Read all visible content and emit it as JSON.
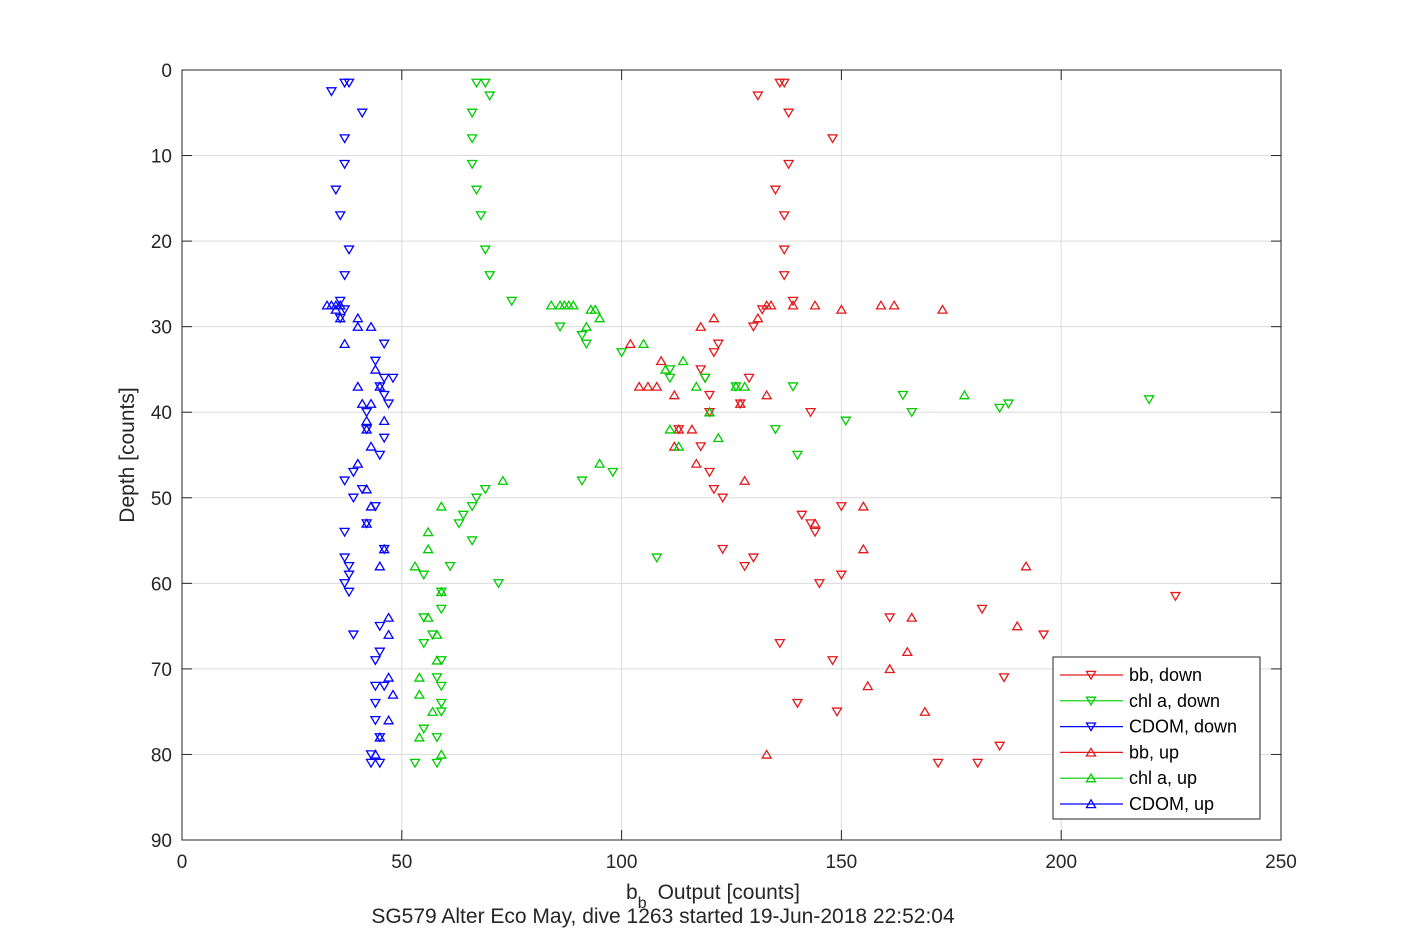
{
  "chart_data": {
    "type": "scatter",
    "xlabel": "Output [counts]",
    "xlabel_prefix": "b",
    "xlabel_subscript": "b",
    "ylabel": "Depth [counts]",
    "caption": "SG579 Alter Eco May, dive 1263 started 19-Jun-2018 22:52:04",
    "xlim": [
      0,
      250
    ],
    "ylim": [
      0,
      90
    ],
    "y_reversed": true,
    "grid": true,
    "x_ticks": [
      0,
      50,
      100,
      150,
      200,
      250
    ],
    "y_ticks": [
      0,
      10,
      20,
      30,
      40,
      50,
      60,
      70,
      80,
      90
    ],
    "legend_position": "bottom-right",
    "series": [
      {
        "name": "bb, down",
        "color": "#e31a1c",
        "marker": "triangle-down",
        "points": [
          [
            136,
            1.5
          ],
          [
            137,
            1.5
          ],
          [
            131,
            3
          ],
          [
            138,
            5
          ],
          [
            148,
            8
          ],
          [
            138,
            11
          ],
          [
            135,
            14
          ],
          [
            137,
            17
          ],
          [
            137,
            21
          ],
          [
            137,
            24
          ],
          [
            139,
            27
          ],
          [
            130,
            30
          ],
          [
            132,
            28
          ],
          [
            122,
            32
          ],
          [
            121,
            33
          ],
          [
            118,
            35
          ],
          [
            119,
            36
          ],
          [
            129,
            36
          ],
          [
            120,
            38
          ],
          [
            127,
            39
          ],
          [
            120,
            40
          ],
          [
            143,
            40
          ],
          [
            113,
            42
          ],
          [
            118,
            44
          ],
          [
            120,
            47
          ],
          [
            121,
            49
          ],
          [
            123,
            50
          ],
          [
            150,
            51
          ],
          [
            141,
            52
          ],
          [
            143,
            53
          ],
          [
            144,
            54
          ],
          [
            123,
            56
          ],
          [
            130,
            57
          ],
          [
            128,
            58
          ],
          [
            150,
            59
          ],
          [
            145,
            60
          ],
          [
            161,
            64
          ],
          [
            182,
            63
          ],
          [
            226,
            61.5
          ],
          [
            196,
            66
          ],
          [
            136,
            67
          ],
          [
            148,
            69
          ],
          [
            187,
            71
          ],
          [
            140,
            74
          ],
          [
            149,
            75
          ],
          [
            186,
            79
          ],
          [
            181,
            81
          ],
          [
            172,
            81
          ]
        ]
      },
      {
        "name": "chl a, down",
        "color": "#00cc00",
        "marker": "triangle-down",
        "points": [
          [
            67,
            1.5
          ],
          [
            69,
            1.5
          ],
          [
            70,
            3
          ],
          [
            66,
            5
          ],
          [
            66,
            8
          ],
          [
            66,
            11
          ],
          [
            67,
            14
          ],
          [
            68,
            17
          ],
          [
            69,
            21
          ],
          [
            70,
            24
          ],
          [
            75,
            27
          ],
          [
            86,
            30
          ],
          [
            91,
            31
          ],
          [
            92,
            32
          ],
          [
            100,
            33
          ],
          [
            111,
            35
          ],
          [
            111,
            36
          ],
          [
            119,
            36
          ],
          [
            126,
            37
          ],
          [
            139,
            37
          ],
          [
            164,
            38
          ],
          [
            220,
            38.5
          ],
          [
            188,
            39
          ],
          [
            186,
            39.5
          ],
          [
            166,
            40
          ],
          [
            151,
            41
          ],
          [
            135,
            42
          ],
          [
            140,
            45
          ],
          [
            98,
            47
          ],
          [
            91,
            48
          ],
          [
            69,
            49
          ],
          [
            67,
            50
          ],
          [
            66,
            51
          ],
          [
            64,
            52
          ],
          [
            63,
            53
          ],
          [
            66,
            55
          ],
          [
            108,
            57
          ],
          [
            61,
            58
          ],
          [
            55,
            59
          ],
          [
            72,
            60
          ],
          [
            59,
            61
          ],
          [
            59,
            63
          ],
          [
            55,
            64
          ],
          [
            57,
            66
          ],
          [
            55,
            67
          ],
          [
            59,
            69
          ],
          [
            58,
            71
          ],
          [
            59,
            72
          ],
          [
            59,
            74
          ],
          [
            59,
            75
          ],
          [
            55,
            77
          ],
          [
            58,
            78
          ],
          [
            58,
            81
          ],
          [
            53,
            81
          ]
        ]
      },
      {
        "name": "CDOM, down",
        "color": "#0000ff",
        "marker": "triangle-down",
        "points": [
          [
            38,
            1.5
          ],
          [
            37,
            1.5
          ],
          [
            34,
            2.5
          ],
          [
            41,
            5
          ],
          [
            37,
            8
          ],
          [
            37,
            11
          ],
          [
            35,
            14
          ],
          [
            36,
            17
          ],
          [
            38,
            21
          ],
          [
            37,
            24
          ],
          [
            36,
            27
          ],
          [
            37,
            28
          ],
          [
            36,
            29
          ],
          [
            46,
            32
          ],
          [
            44,
            34
          ],
          [
            48,
            36
          ],
          [
            46,
            36
          ],
          [
            45,
            37
          ],
          [
            46,
            38
          ],
          [
            47,
            39
          ],
          [
            42,
            40
          ],
          [
            42,
            42
          ],
          [
            46,
            43
          ],
          [
            45,
            45
          ],
          [
            39,
            47
          ],
          [
            37,
            48
          ],
          [
            41,
            49
          ],
          [
            39,
            50
          ],
          [
            44,
            51
          ],
          [
            42,
            53
          ],
          [
            37,
            54
          ],
          [
            46,
            56
          ],
          [
            37,
            57
          ],
          [
            38,
            58
          ],
          [
            38,
            59
          ],
          [
            37,
            60
          ],
          [
            38,
            61
          ],
          [
            45,
            65
          ],
          [
            39,
            66
          ],
          [
            45,
            68
          ],
          [
            44,
            69
          ],
          [
            44,
            72
          ],
          [
            46,
            72
          ],
          [
            44,
            74
          ],
          [
            44,
            76
          ],
          [
            45,
            78
          ],
          [
            43,
            80
          ],
          [
            43,
            81
          ],
          [
            45,
            81
          ]
        ]
      },
      {
        "name": "bb, up",
        "color": "#e31a1c",
        "marker": "triangle-up",
        "points": [
          [
            133,
            27.5
          ],
          [
            134,
            27.5
          ],
          [
            139,
            27.5
          ],
          [
            144,
            27.5
          ],
          [
            159,
            27.5
          ],
          [
            162,
            27.5
          ],
          [
            173,
            28
          ],
          [
            150,
            28
          ],
          [
            121,
            29
          ],
          [
            131,
            29
          ],
          [
            118,
            30
          ],
          [
            102,
            32
          ],
          [
            109,
            34
          ],
          [
            104,
            37
          ],
          [
            106,
            37
          ],
          [
            108,
            37
          ],
          [
            112,
            38
          ],
          [
            133,
            38
          ],
          [
            127,
            39
          ],
          [
            120,
            40
          ],
          [
            113,
            42
          ],
          [
            116,
            42
          ],
          [
            112,
            44
          ],
          [
            117,
            46
          ],
          [
            128,
            48
          ],
          [
            155,
            51
          ],
          [
            144,
            53
          ],
          [
            155,
            56
          ],
          [
            192,
            58
          ],
          [
            190,
            65
          ],
          [
            166,
            64
          ],
          [
            165,
            68
          ],
          [
            161,
            70
          ],
          [
            156,
            72
          ],
          [
            169,
            75
          ],
          [
            133,
            80
          ]
        ]
      },
      {
        "name": "chl a, up",
        "color": "#00cc00",
        "marker": "triangle-up",
        "points": [
          [
            84,
            27.5
          ],
          [
            86,
            27.5
          ],
          [
            87,
            27.5
          ],
          [
            88,
            27.5
          ],
          [
            89,
            27.5
          ],
          [
            94,
            28
          ],
          [
            95,
            29
          ],
          [
            92,
            30
          ],
          [
            93,
            28
          ],
          [
            105,
            32
          ],
          [
            110,
            35
          ],
          [
            114,
            34
          ],
          [
            117,
            37
          ],
          [
            126,
            37
          ],
          [
            128,
            37
          ],
          [
            178,
            38
          ],
          [
            120,
            40
          ],
          [
            111,
            42
          ],
          [
            113,
            44
          ],
          [
            122,
            43
          ],
          [
            95,
            46
          ],
          [
            73,
            48
          ],
          [
            59,
            51
          ],
          [
            56,
            54
          ],
          [
            56,
            56
          ],
          [
            53,
            58
          ],
          [
            59,
            61
          ],
          [
            56,
            64
          ],
          [
            58,
            66
          ],
          [
            58,
            69
          ],
          [
            54,
            71
          ],
          [
            54,
            73
          ],
          [
            57,
            75
          ],
          [
            54,
            78
          ],
          [
            59,
            80
          ]
        ]
      },
      {
        "name": "CDOM, up",
        "color": "#0000ff",
        "marker": "triangle-up",
        "points": [
          [
            33,
            27.5
          ],
          [
            34,
            27.5
          ],
          [
            35,
            27.5
          ],
          [
            36,
            27.5
          ],
          [
            35,
            28
          ],
          [
            36,
            29
          ],
          [
            40,
            29
          ],
          [
            43,
            30
          ],
          [
            37,
            32
          ],
          [
            40,
            30
          ],
          [
            44,
            35
          ],
          [
            45,
            37
          ],
          [
            40,
            37
          ],
          [
            41,
            39
          ],
          [
            43,
            39
          ],
          [
            46,
            41
          ],
          [
            42,
            41
          ],
          [
            42,
            42
          ],
          [
            43,
            44
          ],
          [
            40,
            46
          ],
          [
            42,
            49
          ],
          [
            43,
            51
          ],
          [
            42,
            53
          ],
          [
            46,
            56
          ],
          [
            45,
            58
          ],
          [
            47,
            64
          ],
          [
            47,
            66
          ],
          [
            47,
            71
          ],
          [
            48,
            73
          ],
          [
            47,
            76
          ],
          [
            45,
            78
          ],
          [
            44,
            80
          ]
        ]
      }
    ]
  }
}
